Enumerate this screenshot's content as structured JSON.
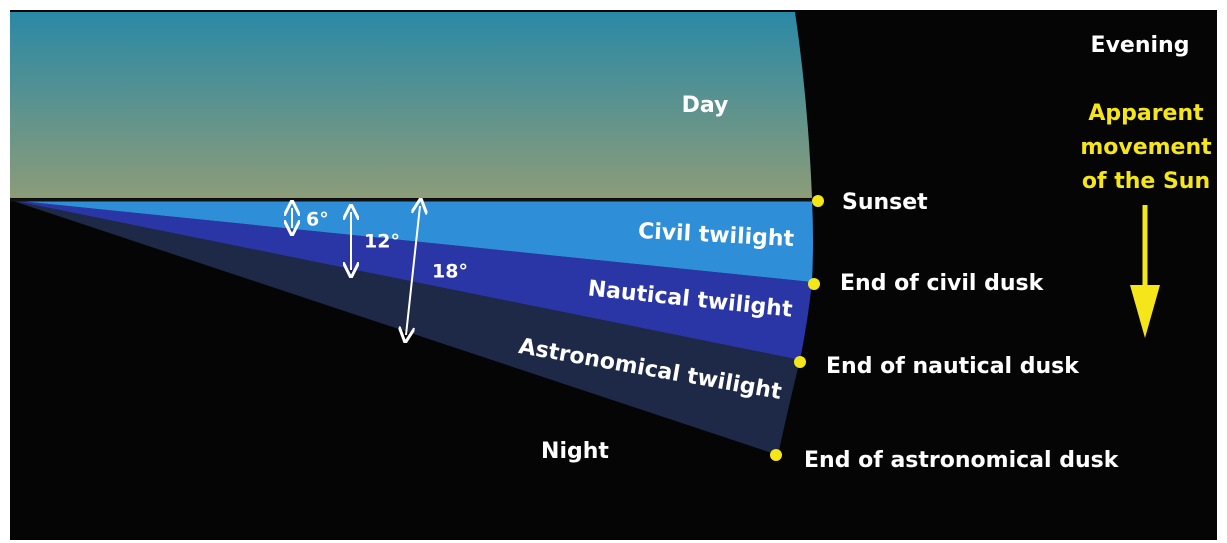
{
  "corner_label": "Evening",
  "sun_movement": {
    "lines": [
      "Apparent",
      "movement",
      "of the Sun"
    ]
  },
  "regions": {
    "day": "Day",
    "civil": "Civil twilight",
    "nautical": "Nautical twilight",
    "astronomical": "Astronomical twilight",
    "night": "Night"
  },
  "angles": [
    "6°",
    "12°",
    "18°"
  ],
  "events": [
    "Sunset",
    "End of civil dusk",
    "End of nautical dusk",
    "End of astronomical dusk"
  ]
}
